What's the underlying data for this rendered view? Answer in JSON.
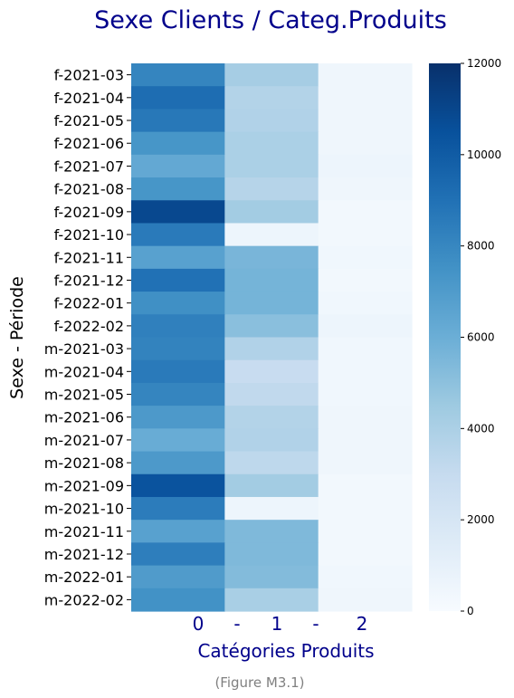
{
  "chart_data": {
    "type": "heatmap",
    "title": "Sexe Clients / Categ.Produits",
    "xlabel": "Catégories Produits",
    "ylabel": "Sexe - Période",
    "xtick_labels": [
      "0",
      "-",
      "1",
      "-",
      "2"
    ],
    "columns": [
      "0",
      "1",
      "2"
    ],
    "rows": [
      "f-2021-03",
      "f-2021-04",
      "f-2021-05",
      "f-2021-06",
      "f-2021-07",
      "f-2021-08",
      "f-2021-09",
      "f-2021-10",
      "f-2021-11",
      "f-2021-12",
      "f-2022-01",
      "f-2022-02",
      "m-2021-03",
      "m-2021-04",
      "m-2021-05",
      "m-2021-06",
      "m-2021-07",
      "m-2021-08",
      "m-2021-09",
      "m-2021-10",
      "m-2021-11",
      "m-2021-12",
      "m-2022-01",
      "m-2022-02"
    ],
    "values": [
      [
        8100,
        4200,
        500
      ],
      [
        9200,
        3700,
        500
      ],
      [
        8700,
        3800,
        500
      ],
      [
        7300,
        4000,
        500
      ],
      [
        6300,
        4000,
        600
      ],
      [
        7300,
        3600,
        500
      ],
      [
        10900,
        4300,
        300
      ],
      [
        8600,
        600,
        300
      ],
      [
        6700,
        5600,
        400
      ],
      [
        9000,
        5700,
        300
      ],
      [
        7600,
        5700,
        400
      ],
      [
        8300,
        5100,
        600
      ],
      [
        8200,
        3800,
        400
      ],
      [
        8600,
        2900,
        400
      ],
      [
        8100,
        3200,
        400
      ],
      [
        7100,
        3700,
        500
      ],
      [
        6100,
        3800,
        500
      ],
      [
        7100,
        3300,
        500
      ],
      [
        10400,
        4300,
        300
      ],
      [
        8500,
        600,
        300
      ],
      [
        6700,
        5400,
        300
      ],
      [
        8400,
        5400,
        300
      ],
      [
        7000,
        5300,
        400
      ],
      [
        7500,
        4100,
        500
      ]
    ],
    "colormap": "Blues",
    "colorbar": {
      "min": 0,
      "max": 12000,
      "ticks": [
        "0",
        "2000",
        "4000",
        "6000",
        "8000",
        "10000",
        "12000"
      ]
    }
  },
  "caption": "(Figure M3.1)"
}
